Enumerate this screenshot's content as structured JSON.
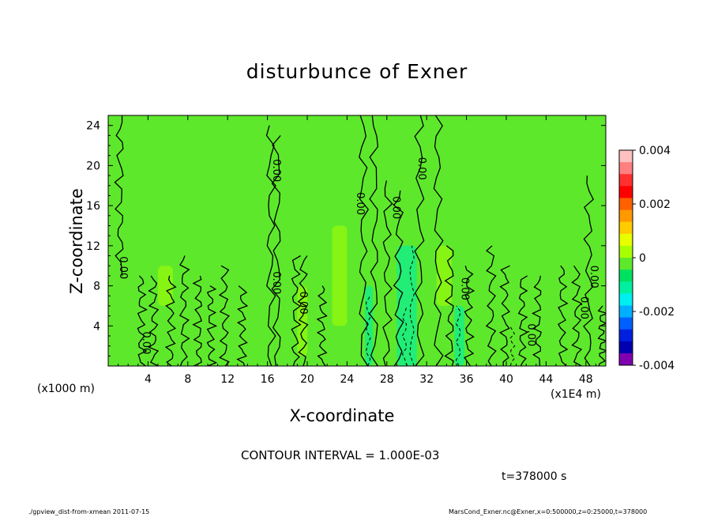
{
  "chart_data": {
    "type": "heatmap",
    "title": "disturbunce of Exner",
    "xlabel": "X-coordinate",
    "ylabel": "Z-coordinate",
    "x_unit_left": "(x1000 m)",
    "x_unit_right": "(x1E4 m)",
    "xlim": [
      0,
      50
    ],
    "ylim": [
      0,
      25
    ],
    "x_ticks": [
      "4",
      "8",
      "12",
      "16",
      "20",
      "24",
      "28",
      "32",
      "36",
      "40",
      "44",
      "48"
    ],
    "y_ticks": [
      "4",
      "8",
      "12",
      "16",
      "20",
      "24"
    ],
    "colorbar": {
      "range": [
        -0.004,
        0.004
      ],
      "labels": [
        "0.004",
        "0.002",
        "0",
        "-0.002",
        "-0.004"
      ],
      "colors": [
        "#ffc0c0",
        "#ff8080",
        "#ff3030",
        "#ff0000",
        "#ff6000",
        "#ff9900",
        "#ffcc00",
        "#e8ff00",
        "#a8ff00",
        "#5ee82c",
        "#00e060",
        "#00f0a0",
        "#00f0f0",
        "#00b0ff",
        "#0060ff",
        "#0020e0",
        "#0000b0",
        "#8000b0"
      ]
    },
    "background_value": 0.0,
    "contour_interval": "1.000E-03",
    "contour_label": "0.00",
    "contour_label_positions": [
      {
        "x": 1.2,
        "z": 9.8,
        "text": "0.00"
      },
      {
        "x": 3.5,
        "z": 2.3,
        "text": "0.00"
      },
      {
        "x": 16.6,
        "z": 19.5,
        "text": "0.00"
      },
      {
        "x": 16.6,
        "z": 8.3,
        "text": "0.00"
      },
      {
        "x": 19.3,
        "z": 6.3,
        "text": "0.00"
      },
      {
        "x": 25.0,
        "z": 16.2,
        "text": "0.00"
      },
      {
        "x": 28.6,
        "z": 15.8,
        "text": "0.00"
      },
      {
        "x": 31.2,
        "z": 19.7,
        "text": "0.00"
      },
      {
        "x": 35.5,
        "z": 7.7,
        "text": "0.00"
      },
      {
        "x": 42.2,
        "z": 3.1,
        "text": "0.00"
      },
      {
        "x": 47.5,
        "z": 5.8,
        "text": "0.00"
      },
      {
        "x": 48.5,
        "z": 8.9,
        "text": "0.00"
      }
    ],
    "positive_regions": [
      {
        "x": [
          22.5,
          24.0
        ],
        "z": [
          4,
          14
        ]
      },
      {
        "x": [
          5.0,
          6.5
        ],
        "z": [
          6,
          10
        ]
      },
      {
        "x": [
          19.0,
          20.0
        ],
        "z": [
          1,
          8
        ]
      },
      {
        "x": [
          33.0,
          34.5
        ],
        "z": [
          6,
          12
        ]
      }
    ],
    "negative_regions": [
      {
        "x": [
          25.8,
          26.6
        ],
        "z": [
          0,
          8
        ]
      },
      {
        "x": [
          29.0,
          31.0
        ],
        "z": [
          0,
          12
        ]
      },
      {
        "x": [
          34.8,
          35.8
        ],
        "z": [
          0,
          6
        ]
      }
    ]
  },
  "contour_info_text": "CONTOUR INTERVAL = 1.000E-03",
  "time_text": "t=378000 s",
  "footer_left": "./gpview_dist-from-xmean  2011-07-15",
  "footer_right": "MarsCond_Exner.nc@Exner,x=0:500000,z=0:25000,t=378000"
}
